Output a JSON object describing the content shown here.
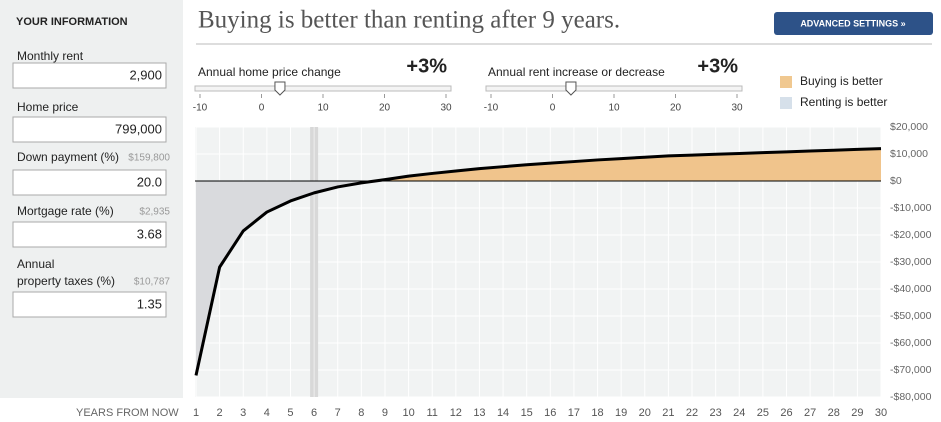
{
  "sidebar": {
    "title": "YOUR INFORMATION",
    "fields": [
      {
        "label": [
          "Monthly rent"
        ],
        "value": "2,900"
      },
      {
        "label": [
          "Home price"
        ],
        "value": "799,000"
      },
      {
        "label": [
          "Down payment (%)"
        ],
        "note": "$159,800",
        "value": "20.0"
      },
      {
        "label": [
          "Mortgage rate (%)"
        ],
        "note": "$2,935",
        "value": "3.68"
      },
      {
        "label": [
          "Annual",
          "property taxes (%)"
        ],
        "note": "$10,787",
        "value": "1.35"
      }
    ]
  },
  "button": "ADVANCED SETTINGS »",
  "sliders": [
    {
      "label": "Annual home price change",
      "value": 3,
      "value_label": "+3%",
      "range": [
        -10,
        30
      ],
      "ticks": [
        -10,
        0,
        10,
        20,
        30
      ]
    },
    {
      "label": "Annual rent increase or decrease",
      "value": 3,
      "value_label": "+3%",
      "range": [
        -10,
        30
      ],
      "ticks": [
        -10,
        0,
        10,
        20,
        30
      ]
    }
  ],
  "chart_data": {
    "type": "line",
    "title": "Buying is better than renting after 9 years.",
    "x_label": "YEARS FROM NOW",
    "x": [
      1,
      2,
      3,
      4,
      5,
      6,
      7,
      8,
      9,
      10,
      11,
      12,
      13,
      14,
      15,
      16,
      17,
      18,
      19,
      20,
      21,
      22,
      23,
      24,
      25,
      26,
      27,
      28,
      29,
      30
    ],
    "series": [
      {
        "color": "#000000",
        "values": [
          -72000,
          -31900,
          -18500,
          -11500,
          -7400,
          -4400,
          -2200,
          -700,
          500,
          1800,
          2800,
          3700,
          4600,
          5300,
          6000,
          6600,
          7200,
          7800,
          8300,
          8800,
          9300,
          9600,
          9900,
          10200,
          10500,
          10800,
          11100,
          11400,
          11700,
          12000
        ]
      }
    ],
    "legend": [
      {
        "name": "Buying is better",
        "color": "#f0c890"
      },
      {
        "name": "Renting is better",
        "color": "#d6e0ea"
      }
    ],
    "positive_color": "#f0c48c",
    "negative_color": "#d9dadd",
    "highlight_x": 6,
    "xlim": [
      1,
      30
    ],
    "xticks": [
      1,
      2,
      3,
      4,
      5,
      6,
      7,
      8,
      9,
      10,
      11,
      12,
      13,
      14,
      15,
      16,
      17,
      18,
      19,
      20,
      21,
      22,
      23,
      24,
      25,
      26,
      27,
      28,
      29,
      30
    ],
    "ylim": [
      -80000,
      20000
    ],
    "yticks": [
      {
        "value": 20000,
        "label": "$20,000"
      },
      {
        "value": 10000,
        "label": "$10,000"
      },
      {
        "value": 0,
        "label": "$0"
      },
      {
        "value": -10000,
        "label": "-$10,000"
      },
      {
        "value": -20000,
        "label": "-$20,000"
      },
      {
        "value": -30000,
        "label": "-$30,000"
      },
      {
        "value": -40000,
        "label": "-$40,000"
      },
      {
        "value": -50000,
        "label": "-$50,000"
      },
      {
        "value": -60000,
        "label": "-$60,000"
      },
      {
        "value": -70000,
        "label": "-$70,000"
      },
      {
        "value": -80000,
        "label": "-$80,000"
      }
    ],
    "grid": true
  }
}
